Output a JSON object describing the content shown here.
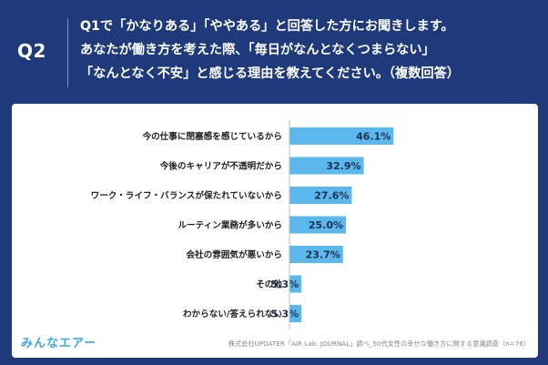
{
  "header": {
    "q_label": "Q2",
    "question_lines": [
      "Q1で「かなりある」「ややある」と回答した方にお聞きします。",
      "あなたが働き方を考えた際、「毎日がなんとなくつまらない」",
      "「なんとなく不安」と感じる理由を教えてください。（複数回答）"
    ]
  },
  "chart_data": {
    "type": "bar",
    "orientation": "horizontal",
    "categories": [
      "今の仕事に閉塞感を感じているから",
      "今後のキャリアが不透明だから",
      "ワーク・ライフ・バランスが保たれていないから",
      "ルーティン業務が多いから",
      "会社の雰囲気が悪いから",
      "その他",
      "わからない/答えられない"
    ],
    "values": [
      46.1,
      32.9,
      27.6,
      25.0,
      23.7,
      5.3,
      5.3
    ],
    "value_labels": [
      "46.1%",
      "32.9%",
      "27.6%",
      "25.0%",
      "23.7%",
      "5.3%",
      "5.3%"
    ],
    "xlim": [
      0,
      100
    ],
    "grid": false,
    "legend": "none",
    "bar_color": "#5ab8ec",
    "axis_color": "#bdbdbd"
  },
  "footer": {
    "logo_text": "みんなエアー",
    "source": "株式会社UPDATER「AIR Lab. JOURNAL」調べ_50代女性の幸せな働き方に関する意識調査（n=76）"
  },
  "colors": {
    "background": "#1f3a7a",
    "card": "#ffffff",
    "text": "#222222"
  }
}
